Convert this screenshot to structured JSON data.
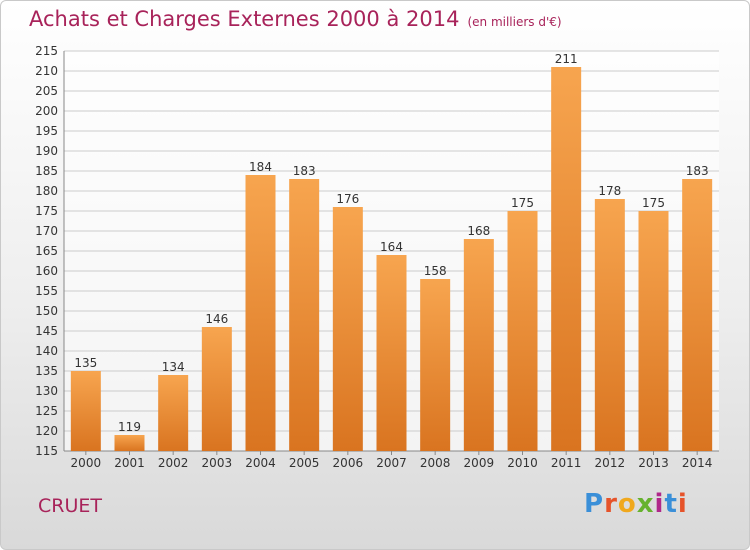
{
  "title": "Achats et Charges Externes 2000 à 2014",
  "subtitle": "(en milliers d'€)",
  "commune": "CRUET",
  "logo": {
    "letters": [
      "P",
      "r",
      "o",
      "x",
      "i",
      "t",
      "i"
    ],
    "colors": [
      "#3a8fd8",
      "#e6532a",
      "#f0a81d",
      "#66b22e",
      "#b0288a",
      "#3a8fd8",
      "#e6532a"
    ]
  },
  "colors": {
    "title": "#a8235a",
    "bar_light": "#f7a54f",
    "bar_dark": "#d97420",
    "grid": "#cccccc"
  },
  "chart_data": {
    "type": "bar",
    "categories": [
      "2000",
      "2001",
      "2002",
      "2003",
      "2004",
      "2005",
      "2006",
      "2007",
      "2008",
      "2009",
      "2010",
      "2011",
      "2012",
      "2013",
      "2014"
    ],
    "values": [
      135,
      119,
      134,
      146,
      184,
      183,
      176,
      164,
      158,
      168,
      175,
      211,
      178,
      175,
      183
    ],
    "ylim": [
      115,
      215
    ],
    "ytick_step": 5,
    "grid": true,
    "xlabel": "",
    "ylabel": ""
  }
}
